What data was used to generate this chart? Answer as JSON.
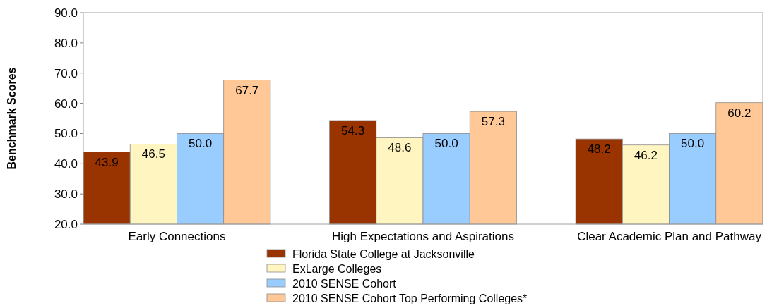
{
  "chart_data": {
    "type": "bar",
    "ylabel": "Benchmark Scores",
    "categories": [
      "Early Connections",
      "High Expectations and Aspirations",
      "Clear Academic Plan and Pathway"
    ],
    "series": [
      {
        "name": "Florida State College at Jacksonville",
        "color": "#993300",
        "values": [
          43.9,
          54.3,
          48.2
        ],
        "value_labels": [
          "43.9",
          "54.3",
          "48.2"
        ]
      },
      {
        "name": "ExLarge Colleges",
        "color": "#fff5c0",
        "values": [
          46.5,
          48.6,
          46.2
        ],
        "value_labels": [
          "46.5",
          "48.6",
          "46.2"
        ]
      },
      {
        "name": "2010 SENSE Cohort",
        "color": "#99ccff",
        "values": [
          50.0,
          50.0,
          50.0
        ],
        "value_labels": [
          "50.0",
          "50.0",
          "50.0"
        ]
      },
      {
        "name": "2010 SENSE Cohort Top Performing Colleges*",
        "color": "#ffc896",
        "values": [
          67.7,
          57.3,
          60.2
        ],
        "value_labels": [
          "67.7",
          "57.3",
          "60.2"
        ]
      }
    ],
    "ylim": [
      20,
      90
    ],
    "yticks": [
      {
        "value": 20,
        "label": "20.0"
      },
      {
        "value": 30,
        "label": "30.0"
      },
      {
        "value": 40,
        "label": "40.0"
      },
      {
        "value": 50,
        "label": "50.0"
      },
      {
        "value": 60,
        "label": "60.0"
      },
      {
        "value": 70,
        "label": "70.0"
      },
      {
        "value": 80,
        "label": "80.0"
      },
      {
        "value": 90,
        "label": "90.0"
      }
    ],
    "grid": false,
    "legend": "bottom"
  }
}
